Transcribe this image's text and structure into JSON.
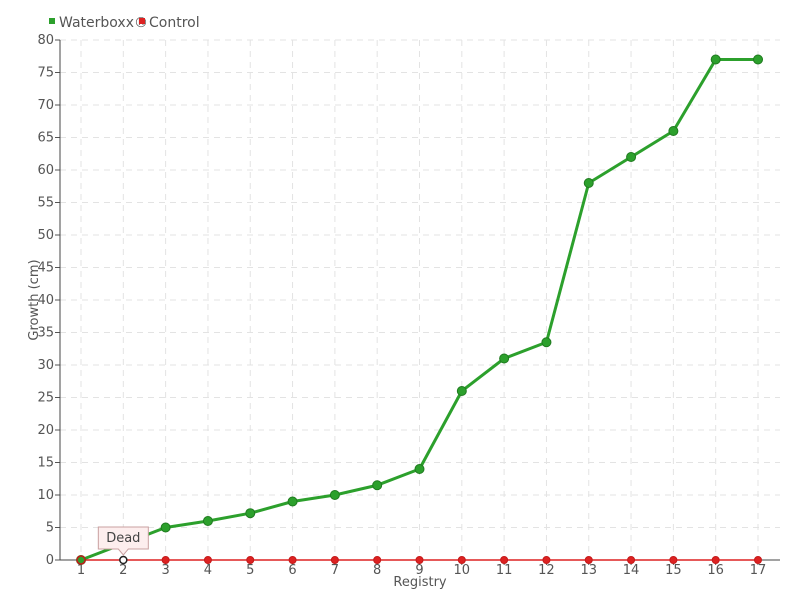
{
  "chart_data": {
    "type": "line",
    "title": "",
    "xlabel": "Registry",
    "ylabel": "Growth (cm)",
    "x": [
      1,
      2,
      3,
      4,
      5,
      6,
      7,
      8,
      9,
      10,
      11,
      12,
      13,
      14,
      15,
      16,
      17
    ],
    "xlim": [
      1,
      17
    ],
    "ylim": [
      0,
      80
    ],
    "y_ticks": [
      0,
      5,
      10,
      15,
      20,
      25,
      30,
      35,
      40,
      45,
      50,
      55,
      60,
      65,
      70,
      75,
      80
    ],
    "grid": true,
    "legend": "top-left",
    "series": [
      {
        "name": "Waterboxx®",
        "color": "#2ca02c",
        "values": [
          0,
          2.5,
          5,
          6,
          7.2,
          9,
          10,
          11.5,
          14,
          26,
          31,
          33.5,
          58,
          62,
          66,
          77,
          77
        ]
      },
      {
        "name": "Control",
        "color": "#dd2222",
        "values": [
          0,
          0,
          0,
          0,
          0,
          0,
          0,
          0,
          0,
          0,
          0,
          0,
          0,
          0,
          0,
          0,
          0
        ]
      }
    ],
    "annotations": [
      {
        "text": "Dead",
        "series": "Control",
        "x": 2,
        "y": 0
      }
    ]
  }
}
